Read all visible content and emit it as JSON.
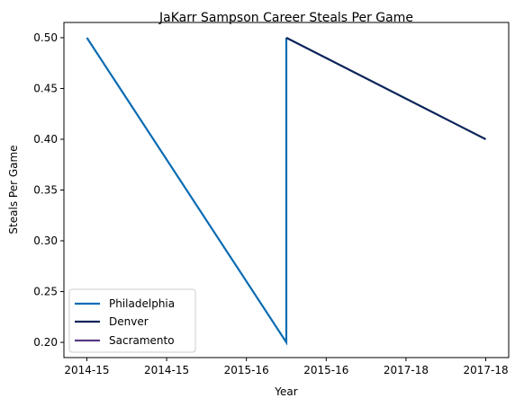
{
  "chart_data": {
    "type": "line",
    "title": "JaKarr Sampson Career Steals Per Game",
    "xlabel": "Year",
    "ylabel": "Steals Per Game",
    "x_tick_labels": [
      "2014-15",
      "2014-15",
      "2015-16",
      "2015-16",
      "2017-18",
      "2017-18"
    ],
    "y_ticks": [
      0.2,
      0.25,
      0.3,
      0.35,
      0.4,
      0.45,
      0.5
    ],
    "ylim": [
      0.185,
      0.515
    ],
    "xlim": [
      -0.23,
      4.23
    ],
    "series": [
      {
        "name": "Philadelphia",
        "color": "#0a6cb3",
        "x": [
          0,
          2,
          2
        ],
        "y": [
          0.5,
          0.2,
          0.5
        ]
      },
      {
        "name": "Denver",
        "color": "#0b2559",
        "x": [
          2,
          4
        ],
        "y": [
          0.5,
          0.4
        ]
      },
      {
        "name": "Sacramento",
        "color": "#5a3a86",
        "x": [],
        "y": []
      }
    ],
    "legend_position": "lower-left",
    "grid": false
  }
}
